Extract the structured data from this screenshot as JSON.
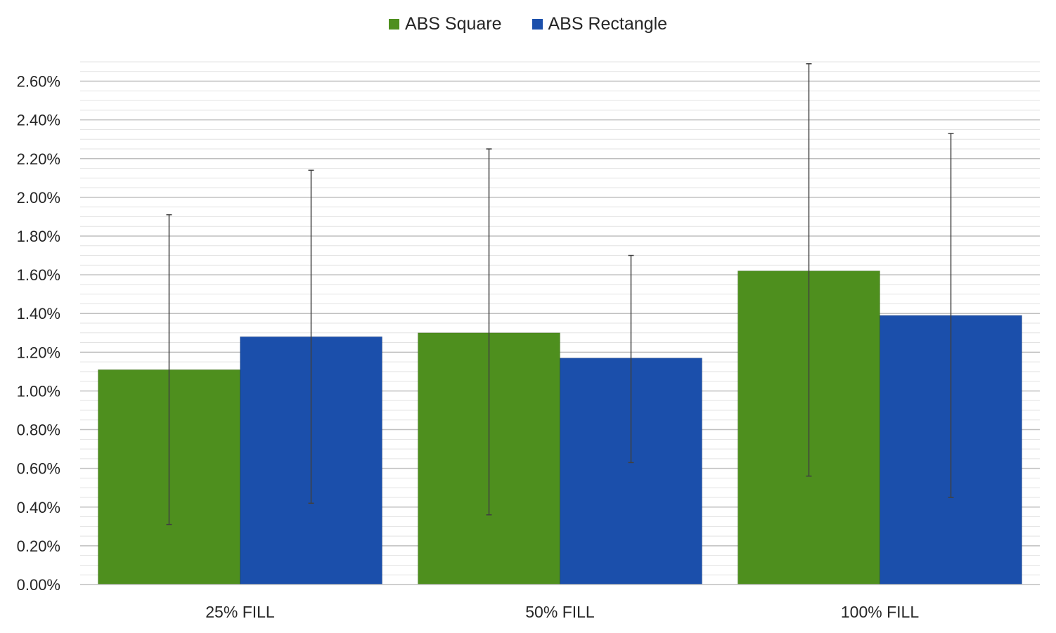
{
  "chart_data": {
    "type": "bar",
    "categories": [
      "25% FILL",
      "50% FILL",
      "100% FILL"
    ],
    "series": [
      {
        "name": "ABS Square",
        "color": "#4e8f1e",
        "values": [
          1.11,
          1.3,
          1.62
        ],
        "error_low": [
          0.31,
          0.36,
          0.56
        ],
        "error_high": [
          1.91,
          2.25,
          2.69
        ]
      },
      {
        "name": "ABS Rectangle",
        "color": "#1b4fab",
        "values": [
          1.28,
          1.17,
          1.39
        ],
        "error_low": [
          0.42,
          0.63,
          0.45
        ],
        "error_high": [
          2.14,
          1.7,
          2.33
        ]
      }
    ],
    "y_ticks": [
      "0.00%",
      "0.20%",
      "0.40%",
      "0.60%",
      "0.80%",
      "1.00%",
      "1.20%",
      "1.40%",
      "1.60%",
      "1.80%",
      "2.00%",
      "2.20%",
      "2.40%",
      "2.60%"
    ],
    "ylim": [
      0,
      2.7
    ],
    "y_unit": "%",
    "grid": true,
    "minor_grid": true,
    "legend_position": "top-center",
    "error_bars": true
  }
}
